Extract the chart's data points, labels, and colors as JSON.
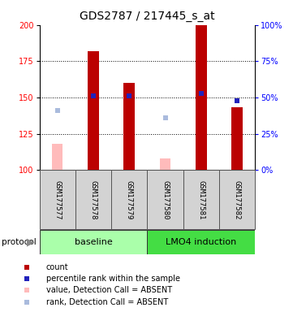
{
  "title": "GDS2787 / 217445_s_at",
  "samples": [
    "GSM177577",
    "GSM177578",
    "GSM177579",
    "GSM177580",
    "GSM177581",
    "GSM177582"
  ],
  "red_bars": [
    null,
    182,
    160,
    null,
    200,
    143
  ],
  "blue_squares": [
    null,
    151,
    151,
    null,
    153,
    148
  ],
  "pink_bars": [
    118,
    null,
    null,
    108,
    null,
    null
  ],
  "light_blue_squares": [
    141,
    null,
    null,
    136,
    null,
    null
  ],
  "ylim": [
    100,
    200
  ],
  "y2lim": [
    0,
    100
  ],
  "yticks": [
    100,
    125,
    150,
    175,
    200
  ],
  "y2ticks": [
    0,
    25,
    50,
    75,
    100
  ],
  "bar_width": 0.32,
  "red_color": "#bb0000",
  "pink_color": "#ffbbbb",
  "blue_color": "#2222bb",
  "light_blue_color": "#aabbdd",
  "title_fontsize": 10,
  "tick_fontsize": 7,
  "label_fontsize": 6.5,
  "legend_fontsize": 7,
  "proto_fontsize": 8,
  "baseline_color": "#aaffaa",
  "lmo4_color": "#44dd44",
  "sample_bg": "#d3d3d3",
  "gridline_ticks": [
    125,
    150,
    175
  ],
  "legend_items": [
    {
      "color": "#bb0000",
      "label": "count"
    },
    {
      "color": "#2222bb",
      "label": "percentile rank within the sample"
    },
    {
      "color": "#ffbbbb",
      "label": "value, Detection Call = ABSENT"
    },
    {
      "color": "#aabbdd",
      "label": "rank, Detection Call = ABSENT"
    }
  ]
}
